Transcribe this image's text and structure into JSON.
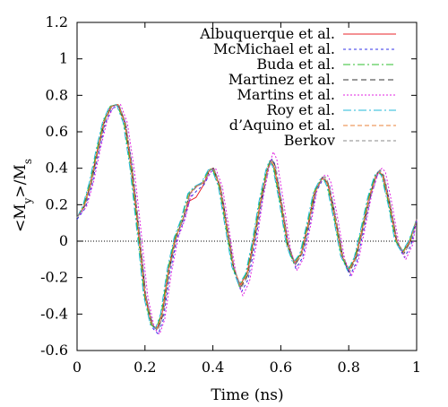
{
  "chart_data": {
    "type": "line",
    "title": "",
    "xlabel": "Time (ns)",
    "ylabel_parts": [
      "<M",
      "y",
      ">/M",
      "s"
    ],
    "xlim": [
      0,
      1
    ],
    "ylim": [
      -0.6,
      1.2
    ],
    "x_ticks": [
      0,
      0.2,
      0.4,
      0.6,
      0.8,
      1
    ],
    "x_tick_labels": [
      "0",
      "0.2",
      "0.4",
      "0.6",
      "0.8",
      "1"
    ],
    "y_ticks": [
      -0.6,
      -0.4,
      -0.2,
      0,
      0.2,
      0.4,
      0.6,
      0.8,
      1,
      1.2
    ],
    "y_tick_labels": [
      "-0.6",
      "-0.4",
      "-0.2",
      "0",
      "0.2",
      "0.4",
      "0.6",
      "0.8",
      "1",
      "1.2"
    ],
    "grid": false,
    "zero_line": true,
    "legend_position": "top-right",
    "x": [
      0,
      0.02,
      0.04,
      0.06,
      0.08,
      0.1,
      0.12,
      0.14,
      0.16,
      0.18,
      0.2,
      0.22,
      0.235,
      0.25,
      0.27,
      0.29,
      0.31,
      0.33,
      0.35,
      0.37,
      0.39,
      0.4,
      0.42,
      0.44,
      0.46,
      0.48,
      0.5,
      0.52,
      0.54,
      0.56,
      0.57,
      0.58,
      0.6,
      0.62,
      0.64,
      0.66,
      0.68,
      0.7,
      0.72,
      0.73,
      0.74,
      0.76,
      0.78,
      0.8,
      0.82,
      0.84,
      0.86,
      0.88,
      0.89,
      0.9,
      0.92,
      0.94,
      0.96,
      0.98,
      1
    ],
    "series": [
      {
        "name": "Albuquerque et al.",
        "color": "#e8232a",
        "dash": "",
        "dx": 0,
        "dy": 0,
        "values": [
          0.13,
          0.19,
          0.32,
          0.5,
          0.66,
          0.74,
          0.75,
          0.65,
          0.4,
          0.06,
          -0.3,
          -0.46,
          -0.48,
          -0.4,
          -0.15,
          0.02,
          0.11,
          0.22,
          0.24,
          0.3,
          0.39,
          0.4,
          0.3,
          0.08,
          -0.14,
          -0.24,
          -0.18,
          0.0,
          0.22,
          0.39,
          0.44,
          0.41,
          0.21,
          -0.02,
          -0.12,
          -0.07,
          0.09,
          0.27,
          0.34,
          0.34,
          0.3,
          0.12,
          -0.08,
          -0.16,
          -0.09,
          0.07,
          0.24,
          0.36,
          0.38,
          0.36,
          0.2,
          0.0,
          -0.06,
          0.0,
          0.12
        ]
      },
      {
        "name": "McMichael et al.",
        "color": "#3030e8",
        "dash": "3 3",
        "dx": 0.004,
        "dy": -0.01,
        "values": [
          0.13,
          0.19,
          0.32,
          0.5,
          0.66,
          0.74,
          0.75,
          0.65,
          0.4,
          0.06,
          -0.3,
          -0.47,
          -0.5,
          -0.42,
          -0.16,
          0.02,
          0.12,
          0.25,
          0.29,
          0.32,
          0.39,
          0.4,
          0.3,
          0.07,
          -0.16,
          -0.27,
          -0.2,
          -0.01,
          0.23,
          0.41,
          0.46,
          0.43,
          0.21,
          -0.03,
          -0.14,
          -0.08,
          0.09,
          0.28,
          0.35,
          0.35,
          0.31,
          0.12,
          -0.09,
          -0.18,
          -0.1,
          0.07,
          0.25,
          0.37,
          0.39,
          0.37,
          0.2,
          -0.01,
          -0.08,
          -0.01,
          0.12
        ]
      },
      {
        "name": "Buda et al.",
        "color": "#2fbf2f",
        "dash": "8 3 2 3",
        "dx": -0.002,
        "dy": 0,
        "values": [
          0.13,
          0.19,
          0.32,
          0.5,
          0.66,
          0.74,
          0.75,
          0.65,
          0.4,
          0.06,
          -0.3,
          -0.46,
          -0.48,
          -0.4,
          -0.15,
          0.02,
          0.12,
          0.26,
          0.3,
          0.32,
          0.39,
          0.4,
          0.3,
          0.08,
          -0.14,
          -0.25,
          -0.18,
          0.0,
          0.22,
          0.39,
          0.44,
          0.41,
          0.21,
          -0.02,
          -0.12,
          -0.07,
          0.09,
          0.27,
          0.34,
          0.34,
          0.3,
          0.12,
          -0.08,
          -0.16,
          -0.09,
          0.07,
          0.24,
          0.36,
          0.38,
          0.36,
          0.2,
          0.0,
          -0.06,
          0.0,
          0.12
        ]
      },
      {
        "name": "Martinez et al.",
        "color": "#333333",
        "dash": "6 4",
        "dx": 0.002,
        "dy": 0,
        "values": [
          0.13,
          0.19,
          0.32,
          0.5,
          0.66,
          0.74,
          0.75,
          0.65,
          0.4,
          0.06,
          -0.3,
          -0.46,
          -0.49,
          -0.41,
          -0.15,
          0.02,
          0.12,
          0.26,
          0.3,
          0.32,
          0.39,
          0.4,
          0.3,
          0.08,
          -0.15,
          -0.25,
          -0.19,
          0.0,
          0.22,
          0.4,
          0.45,
          0.42,
          0.21,
          -0.02,
          -0.13,
          -0.07,
          0.09,
          0.27,
          0.35,
          0.35,
          0.3,
          0.12,
          -0.08,
          -0.17,
          -0.09,
          0.07,
          0.24,
          0.37,
          0.39,
          0.36,
          0.2,
          0.0,
          -0.07,
          0.0,
          0.12
        ]
      },
      {
        "name": "Martins et al.",
        "color": "#e020e0",
        "dash": "2 2",
        "dx": 0.008,
        "dy": 0,
        "values": [
          0.13,
          0.19,
          0.32,
          0.5,
          0.66,
          0.74,
          0.75,
          0.65,
          0.4,
          0.06,
          -0.3,
          -0.48,
          -0.51,
          -0.43,
          -0.17,
          0.02,
          0.12,
          0.27,
          0.31,
          0.33,
          0.39,
          0.4,
          0.3,
          0.06,
          -0.18,
          -0.3,
          -0.22,
          -0.02,
          0.24,
          0.43,
          0.49,
          0.45,
          0.22,
          -0.04,
          -0.16,
          -0.09,
          0.09,
          0.29,
          0.36,
          0.36,
          0.32,
          0.12,
          -0.1,
          -0.19,
          -0.11,
          0.07,
          0.26,
          0.38,
          0.4,
          0.38,
          0.2,
          -0.02,
          -0.1,
          -0.02,
          0.12
        ]
      },
      {
        "name": "Roy et al.",
        "color": "#20b8d8",
        "dash": "9 3 2 3",
        "dx": -0.004,
        "dy": 0,
        "values": [
          0.13,
          0.19,
          0.32,
          0.5,
          0.66,
          0.74,
          0.75,
          0.65,
          0.4,
          0.06,
          -0.3,
          -0.46,
          -0.48,
          -0.4,
          -0.15,
          0.02,
          0.12,
          0.26,
          0.3,
          0.32,
          0.39,
          0.4,
          0.3,
          0.08,
          -0.14,
          -0.24,
          -0.18,
          0.0,
          0.22,
          0.39,
          0.44,
          0.41,
          0.21,
          -0.02,
          -0.12,
          -0.07,
          0.09,
          0.27,
          0.34,
          0.34,
          0.3,
          0.12,
          -0.08,
          -0.16,
          -0.09,
          0.07,
          0.24,
          0.36,
          0.38,
          0.36,
          0.2,
          0.0,
          -0.06,
          0.0,
          0.12
        ]
      },
      {
        "name": "d’Aquino et al.",
        "color": "#e8803a",
        "dash": "5 3",
        "dx": 0.001,
        "dy": 0,
        "values": [
          0.13,
          0.19,
          0.32,
          0.5,
          0.66,
          0.74,
          0.75,
          0.65,
          0.4,
          0.06,
          -0.3,
          -0.46,
          -0.48,
          -0.4,
          -0.15,
          0.02,
          0.12,
          0.26,
          0.3,
          0.32,
          0.39,
          0.4,
          0.3,
          0.08,
          -0.14,
          -0.25,
          -0.18,
          0.0,
          0.22,
          0.39,
          0.44,
          0.41,
          0.21,
          -0.02,
          -0.12,
          -0.07,
          0.09,
          0.27,
          0.34,
          0.34,
          0.3,
          0.12,
          -0.08,
          -0.16,
          -0.09,
          0.07,
          0.24,
          0.36,
          0.38,
          0.36,
          0.2,
          0.0,
          -0.06,
          0.0,
          0.12
        ]
      },
      {
        "name": "Berkov",
        "color": "#8a8a8a",
        "dash": "4 3",
        "dx": 0.003,
        "dy": 0,
        "values": [
          0.13,
          0.19,
          0.32,
          0.5,
          0.66,
          0.74,
          0.75,
          0.65,
          0.4,
          0.06,
          -0.3,
          -0.46,
          -0.49,
          -0.41,
          -0.15,
          0.02,
          0.12,
          0.26,
          0.3,
          0.32,
          0.39,
          0.4,
          0.3,
          0.08,
          -0.15,
          -0.26,
          -0.19,
          0.0,
          0.22,
          0.4,
          0.45,
          0.42,
          0.21,
          -0.02,
          -0.13,
          -0.07,
          0.09,
          0.27,
          0.35,
          0.35,
          0.3,
          0.12,
          -0.08,
          -0.17,
          -0.09,
          0.07,
          0.24,
          0.37,
          0.39,
          0.36,
          0.2,
          0.0,
          -0.07,
          0.0,
          0.12
        ]
      }
    ]
  }
}
